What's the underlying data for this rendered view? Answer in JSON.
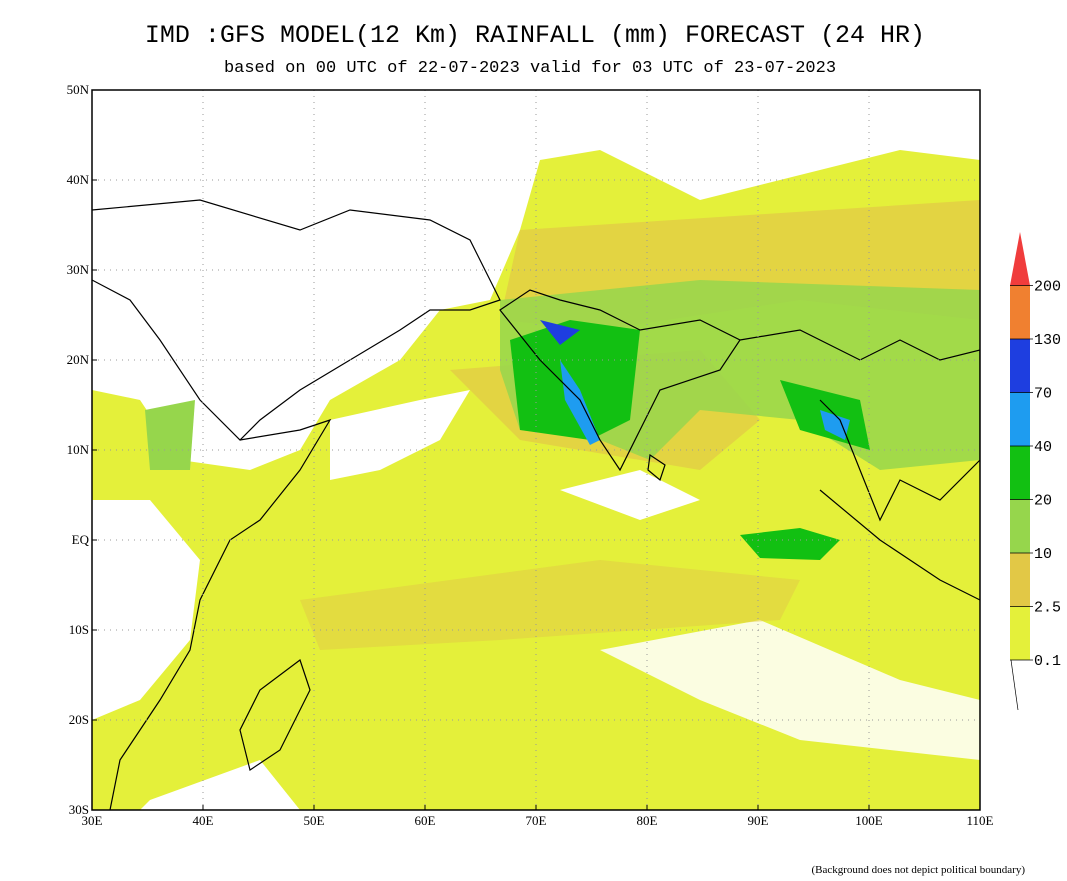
{
  "map": {
    "title": "IMD :GFS MODEL(12 Km) RAINFALL (mm) FORECAST (24 HR)",
    "subtitle": "based on 00 UTC of 22-07-2023 valid for 03 UTC of 23-07-2023",
    "xlim": [
      30,
      110
    ],
    "ylim": [
      -30,
      50
    ],
    "xticks": [
      {
        "value": 30,
        "label": "30E"
      },
      {
        "value": 40,
        "label": "40E"
      },
      {
        "value": 50,
        "label": "50E"
      },
      {
        "value": 60,
        "label": "60E"
      },
      {
        "value": 70,
        "label": "70E"
      },
      {
        "value": 80,
        "label": "80E"
      },
      {
        "value": 90,
        "label": "90E"
      },
      {
        "value": 100,
        "label": "100E"
      },
      {
        "value": 110,
        "label": "110E"
      }
    ],
    "yticks": [
      {
        "value": 50,
        "label": "50N"
      },
      {
        "value": 40,
        "label": "40N"
      },
      {
        "value": 30,
        "label": "30N"
      },
      {
        "value": 20,
        "label": "20N"
      },
      {
        "value": 10,
        "label": "10N"
      },
      {
        "value": 0,
        "label": "EQ"
      },
      {
        "value": -10,
        "label": "10S"
      },
      {
        "value": -20,
        "label": "20S"
      },
      {
        "value": -30,
        "label": "30S"
      }
    ],
    "colorbar": {
      "levels": [
        0.1,
        2.5,
        10,
        20,
        40,
        70,
        130,
        200
      ],
      "colors": [
        "#e4f03a",
        "#e2c846",
        "#96d64c",
        "#12c012",
        "#1e9cf0",
        "#1e3ee0",
        "#f08030",
        "#f03c3c"
      ]
    },
    "note": "(Background does not depict political boundary)"
  }
}
